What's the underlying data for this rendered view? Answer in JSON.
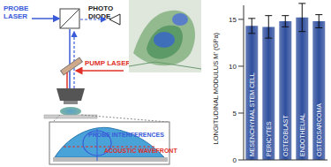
{
  "diagram": {
    "probe_laser": [
      "PROBE",
      "LASER"
    ],
    "photo_diode": [
      "PHOTO",
      "DIODE"
    ],
    "pump_laser": "PUMP LASER",
    "probe_interferences": "PROBE INTERFERENCES",
    "acoustic_wavefront": "ACOUSTIC WAVEFRONT"
  },
  "chart_data": {
    "type": "bar",
    "y_label": "LONGITUDINAL MODULUS M' (GPa)",
    "categories": [
      "MESENCHYMAL STEM CELL",
      "PERICYTES",
      "OSTEOBLAST",
      "ENDOTHELIAL",
      "OSTEOSARCOMA"
    ],
    "values": [
      14.3,
      14.2,
      14.8,
      15.2,
      14.8
    ],
    "errors": [
      0.8,
      1.2,
      0.6,
      1.5,
      0.7
    ],
    "color": "#2f4f9e",
    "ylim": [
      0,
      16.5
    ],
    "yticks": [
      0,
      5,
      10,
      15
    ],
    "grid": false
  }
}
